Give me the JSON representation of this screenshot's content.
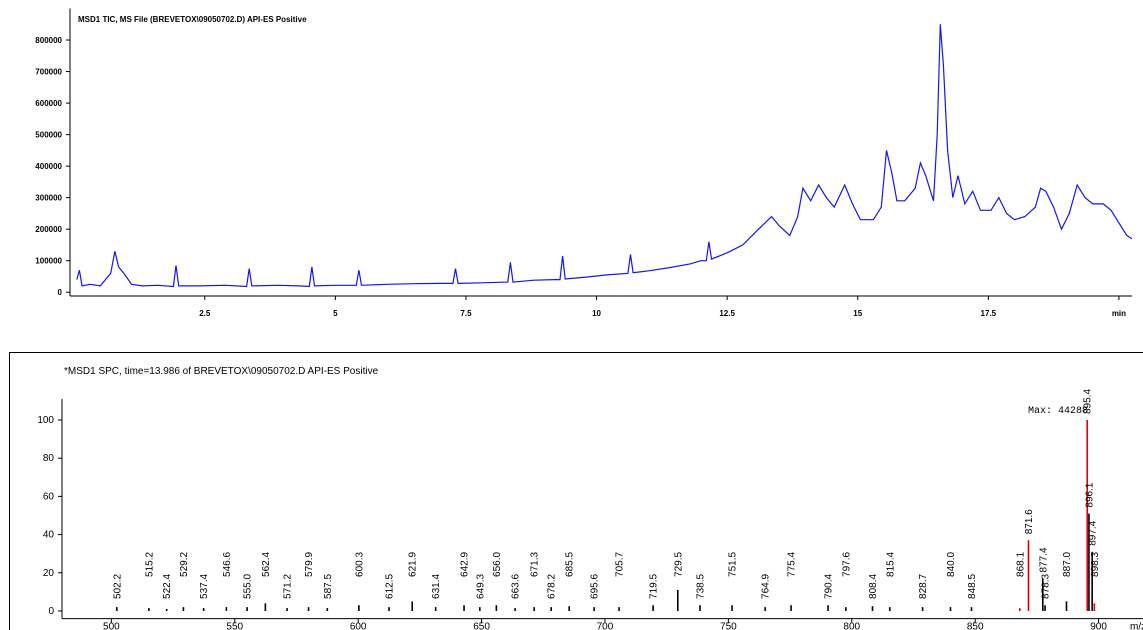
{
  "chart_data": [
    {
      "type": "line",
      "title": "MSD1 TIC, MS File (BREVETOX\\09050702.D)  API-ES Positive",
      "color": "#1515f0",
      "xlim": [
        -0.08,
        20.25
      ],
      "ylim": [
        -12000,
        900000
      ],
      "xticks": [
        2.5,
        5,
        7.5,
        10,
        12.5,
        15,
        17.5,
        {
          "value": 20,
          "label": "min"
        }
      ],
      "yticks": [
        0,
        100000,
        200000,
        300000,
        400000,
        500000,
        600000,
        700000,
        800000
      ],
      "x": [
        0.05,
        0.1,
        0.15,
        0.3,
        0.5,
        0.7,
        0.78,
        0.85,
        0.95,
        1.1,
        1.3,
        1.6,
        1.9,
        1.95,
        2.0,
        2.4,
        2.9,
        3.3,
        3.35,
        3.4,
        3.9,
        4.3,
        4.5,
        4.55,
        4.6,
        5.0,
        5.4,
        5.45,
        5.5,
        6.0,
        6.5,
        7.0,
        7.25,
        7.3,
        7.35,
        7.8,
        8.3,
        8.35,
        8.4,
        8.8,
        9.2,
        9.3,
        9.35,
        9.4,
        9.8,
        10.2,
        10.6,
        10.65,
        10.7,
        11.0,
        11.4,
        11.8,
        12.0,
        12.1,
        12.15,
        12.2,
        12.5,
        12.8,
        13.1,
        13.35,
        13.5,
        13.7,
        13.85,
        13.95,
        14.1,
        14.25,
        14.4,
        14.55,
        14.75,
        14.9,
        15.05,
        15.3,
        15.45,
        15.55,
        15.65,
        15.75,
        15.9,
        16.0,
        16.1,
        16.2,
        16.3,
        16.45,
        16.52,
        16.58,
        16.64,
        16.72,
        16.82,
        16.92,
        17.05,
        17.2,
        17.35,
        17.55,
        17.7,
        17.85,
        18.0,
        18.2,
        18.4,
        18.5,
        18.6,
        18.75,
        18.9,
        19.05,
        19.2,
        19.35,
        19.5,
        19.7,
        19.85,
        20.0,
        20.15,
        20.25
      ],
      "values": [
        40000,
        70000,
        20000,
        25000,
        20000,
        60000,
        130000,
        80000,
        60000,
        25000,
        20000,
        22000,
        18000,
        85000,
        20000,
        20000,
        22000,
        18000,
        75000,
        20000,
        22000,
        20000,
        18000,
        80000,
        20000,
        22000,
        22000,
        70000,
        22000,
        25000,
        27000,
        28000,
        28000,
        75000,
        28000,
        30000,
        32000,
        95000,
        32000,
        38000,
        40000,
        40000,
        115000,
        42000,
        48000,
        55000,
        60000,
        120000,
        62000,
        68000,
        78000,
        90000,
        100000,
        100000,
        160000,
        105000,
        125000,
        150000,
        200000,
        240000,
        210000,
        180000,
        240000,
        330000,
        290000,
        340000,
        300000,
        270000,
        340000,
        280000,
        230000,
        230000,
        270000,
        450000,
        380000,
        290000,
        290000,
        310000,
        330000,
        410000,
        370000,
        290000,
        500000,
        850000,
        720000,
        450000,
        300000,
        370000,
        280000,
        320000,
        260000,
        260000,
        300000,
        250000,
        230000,
        240000,
        270000,
        330000,
        320000,
        270000,
        200000,
        250000,
        340000,
        300000,
        280000,
        280000,
        260000,
        220000,
        180000,
        170000
      ]
    },
    {
      "type": "bar",
      "title": "*MSD1 SPC, time=13.986 of BREVETOX\\09050702.D  API-ES Positive",
      "annotation": "Max: 44288",
      "x_label": "m/z",
      "xlim": [
        480,
        918
      ],
      "ylim": [
        -4,
        111
      ],
      "xticks": [
        500,
        550,
        600,
        650,
        700,
        750,
        800,
        850,
        900
      ],
      "yticks": [
        0,
        20,
        40,
        60,
        80,
        100
      ],
      "x": [
        502.2,
        515.2,
        522.4,
        529.2,
        537.4,
        546.6,
        555.0,
        562.4,
        571.2,
        579.9,
        587.5,
        600.3,
        612.5,
        621.9,
        631.4,
        642.9,
        649.3,
        656.0,
        663.6,
        671.3,
        678.2,
        685.5,
        695.6,
        705.7,
        719.5,
        729.5,
        738.5,
        751.5,
        764.9,
        775.4,
        790.4,
        797.6,
        808.4,
        815.4,
        828.7,
        840.0,
        848.5,
        868.1,
        871.6,
        877.4,
        878.3,
        887.0,
        895.4,
        896.1,
        897.4,
        898.3
      ],
      "x_labels": [
        "502.2",
        "515.2",
        "522.4",
        "529.2",
        "537.4",
        "546.6",
        "555.0",
        "562.4",
        "571.2",
        "579.9",
        "587.5",
        "600.3",
        "612.5",
        "621.9",
        "631.4",
        "642.9",
        "649.3",
        "656.0",
        "663.6",
        "671.3",
        "678.2",
        "685.5",
        "695.6",
        "705.7",
        "719.5",
        "729.5",
        "738.5",
        "751.5",
        "764.9",
        "775.4",
        "790.4",
        "797.6",
        "808.4",
        "815.4",
        "828.7",
        "840.0",
        "848.5",
        "868.1",
        "871.6",
        "877.4",
        "878.3",
        "887.0",
        "895.4",
        "896.1",
        "897.4",
        "898.3"
      ],
      "values": [
        2,
        1.5,
        1,
        2,
        1.5,
        2,
        2,
        4,
        1.5,
        2,
        1.5,
        3,
        2,
        5,
        2,
        3,
        2,
        3,
        1.5,
        2,
        2,
        2.5,
        2,
        2,
        3,
        11,
        3,
        3,
        2,
        3,
        3,
        2,
        2.5,
        2,
        2,
        2,
        2,
        1.5,
        37,
        17,
        3,
        5,
        100,
        51,
        31,
        4
      ],
      "colors": [
        "#000",
        "#000",
        "#000",
        "#000",
        "#000",
        "#000",
        "#000",
        "#000",
        "#000",
        "#000",
        "#000",
        "#000",
        "#000",
        "#000",
        "#000",
        "#000",
        "#000",
        "#000",
        "#000",
        "#000",
        "#000",
        "#000",
        "#000",
        "#000",
        "#000",
        "#000",
        "#000",
        "#000",
        "#000",
        "#000",
        "#000",
        "#000",
        "#000",
        "#000",
        "#000",
        "#000",
        "#000",
        "#e00000",
        "#e00000",
        "#000",
        "#000",
        "#000",
        "#e00000",
        "#000",
        "#000",
        "#e00000"
      ]
    }
  ]
}
